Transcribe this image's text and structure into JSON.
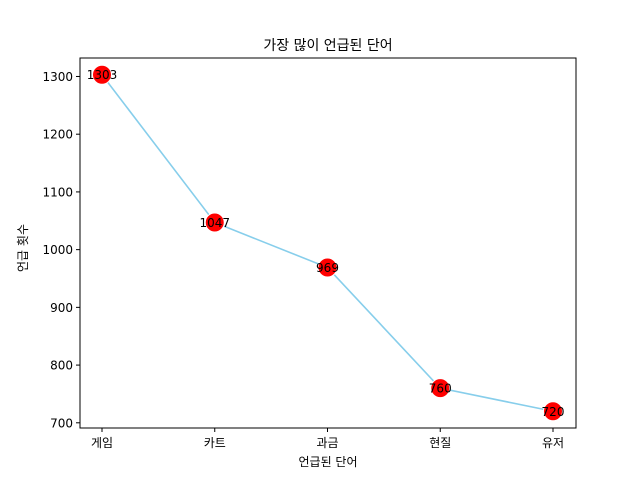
{
  "chart_data": {
    "type": "line",
    "title": "가장 많이 언급된 단어",
    "xlabel": "언급된 단어",
    "ylabel": "언급 횟수",
    "categories": [
      "게임",
      "카트",
      "과금",
      "현질",
      "유저"
    ],
    "series": [
      {
        "values": [
          1303,
          1047,
          969,
          760,
          720
        ]
      }
    ],
    "yticks": [
      700,
      800,
      900,
      1000,
      1100,
      1200,
      1300
    ],
    "ylim": [
      691,
      1332
    ],
    "grid": false,
    "colors": {
      "line": "#87ceeb",
      "marker": "#ff0000",
      "marker_edge": "#ffffff"
    }
  }
}
